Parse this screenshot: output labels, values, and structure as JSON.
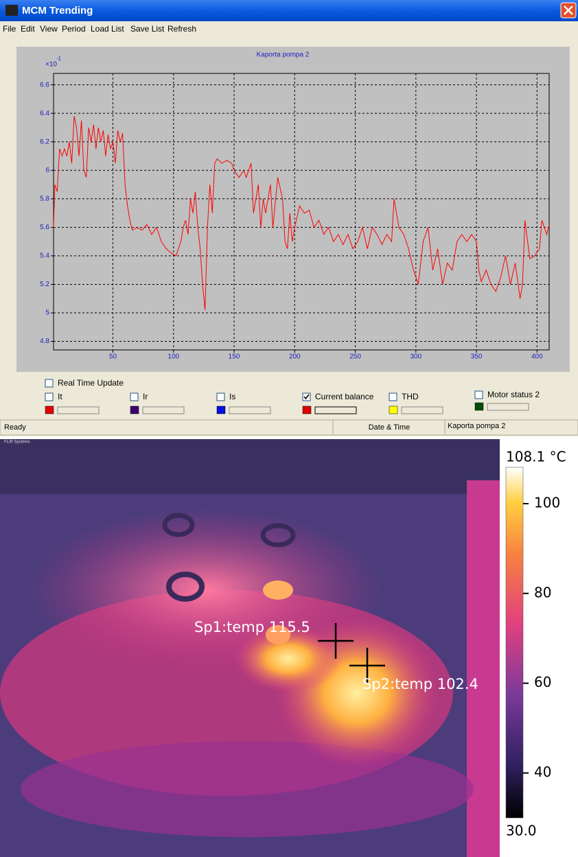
{
  "window": {
    "title": "MCM Trending",
    "menu": [
      "File",
      "Edit",
      "View",
      "Period",
      "Load List",
      "Save List",
      "Refresh"
    ]
  },
  "chart_data": {
    "type": "line",
    "title": "Kaporta pompa 2",
    "y_scale_label": "×10",
    "y_scale_exponent": "-1",
    "color": "#ff0000",
    "grid": true,
    "xlim": [
      1,
      410
    ],
    "xticks": [
      50,
      100,
      150,
      200,
      250,
      300,
      350,
      400
    ],
    "ylim": [
      4.74,
      6.68
    ],
    "yticks": [
      4.8,
      5,
      5.2,
      5.4,
      5.6,
      5.8,
      6,
      6.2,
      6.4,
      6.6
    ],
    "x": [
      1,
      2,
      4,
      6,
      8,
      10,
      12,
      14,
      16,
      18,
      20,
      22,
      24,
      26,
      28,
      30,
      32,
      34,
      36,
      38,
      40,
      42,
      44,
      46,
      48,
      50,
      52,
      54,
      56,
      58,
      60,
      62,
      64,
      66,
      70,
      74,
      78,
      82,
      86,
      90,
      94,
      98,
      102,
      106,
      108,
      110,
      112,
      114,
      116,
      118,
      120,
      122,
      124,
      126,
      128,
      130,
      132,
      134,
      136,
      140,
      144,
      148,
      150,
      154,
      158,
      160,
      164,
      166,
      170,
      172,
      174,
      176,
      180,
      182,
      186,
      190,
      192,
      194,
      196,
      198,
      200,
      204,
      208,
      212,
      216,
      220,
      224,
      228,
      232,
      236,
      240,
      244,
      248,
      252,
      256,
      260,
      264,
      268,
      272,
      276,
      280,
      282,
      284,
      286,
      290,
      294,
      298,
      302,
      306,
      310,
      314,
      318,
      322,
      326,
      330,
      334,
      338,
      342,
      346,
      350,
      352,
      354,
      358,
      362,
      366,
      370,
      374,
      378,
      382,
      386,
      388,
      390,
      394,
      398,
      402,
      404,
      408,
      410
    ],
    "values": [
      5.6,
      5.9,
      5.85,
      6.15,
      6.1,
      6.15,
      6.1,
      6.2,
      6.05,
      6.38,
      6.3,
      6.1,
      6.35,
      6.0,
      5.95,
      6.3,
      6.2,
      6.32,
      6.15,
      6.3,
      6.2,
      6.28,
      6.1,
      6.25,
      6.15,
      6.2,
      6.05,
      6.28,
      6.2,
      6.26,
      5.9,
      5.75,
      5.65,
      5.58,
      5.6,
      5.58,
      5.62,
      5.55,
      5.6,
      5.5,
      5.45,
      5.42,
      5.4,
      5.5,
      5.6,
      5.65,
      5.55,
      5.8,
      5.7,
      5.85,
      5.6,
      5.45,
      5.2,
      5.02,
      5.6,
      5.9,
      5.7,
      6.05,
      6.08,
      6.05,
      6.07,
      6.05,
      6.0,
      5.95,
      6.0,
      5.95,
      6.05,
      5.7,
      5.9,
      5.6,
      5.8,
      5.7,
      5.9,
      5.6,
      5.95,
      5.8,
      5.5,
      5.45,
      5.7,
      5.5,
      5.6,
      5.75,
      5.7,
      5.72,
      5.6,
      5.65,
      5.55,
      5.6,
      5.5,
      5.55,
      5.48,
      5.55,
      5.45,
      5.5,
      5.6,
      5.45,
      5.6,
      5.55,
      5.48,
      5.55,
      5.5,
      5.8,
      5.7,
      5.6,
      5.55,
      5.45,
      5.3,
      5.2,
      5.5,
      5.6,
      5.3,
      5.45,
      5.2,
      5.35,
      5.3,
      5.5,
      5.55,
      5.5,
      5.55,
      5.5,
      5.3,
      5.22,
      5.3,
      5.2,
      5.15,
      5.25,
      5.4,
      5.2,
      5.35,
      5.1,
      5.2,
      5.65,
      5.38,
      5.4,
      5.45,
      5.65,
      5.55,
      5.62
    ]
  },
  "controls": {
    "realtime": {
      "label": "Real Time Update",
      "checked": false
    },
    "channels": [
      {
        "label": "It",
        "checked": false,
        "color": "#e00000"
      },
      {
        "label": "Ir",
        "checked": false,
        "color": "#3c0070"
      },
      {
        "label": "Is",
        "checked": false,
        "color": "#0010e0"
      },
      {
        "label": "Current balance",
        "checked": true,
        "color": "#e00000"
      },
      {
        "label": "THD",
        "checked": false,
        "color": "#ffff00"
      },
      {
        "label": "Motor status 2",
        "checked": false,
        "color": "#0a4a0a"
      }
    ]
  },
  "status": [
    "Ready",
    "Date & Time",
    "Kaporta pompa 2"
  ],
  "thermal": {
    "brand": "FLIR Systems",
    "spots": [
      "Sp1:temp 115.5",
      "Sp2:temp 102.4"
    ],
    "colorbar": {
      "lim": [
        30,
        108.1
      ],
      "ticks": [
        {
          "value": 108.1,
          "label": "108.1 °C"
        },
        100,
        80,
        60,
        40,
        {
          "value": 30,
          "label": "30.0"
        }
      ]
    }
  }
}
